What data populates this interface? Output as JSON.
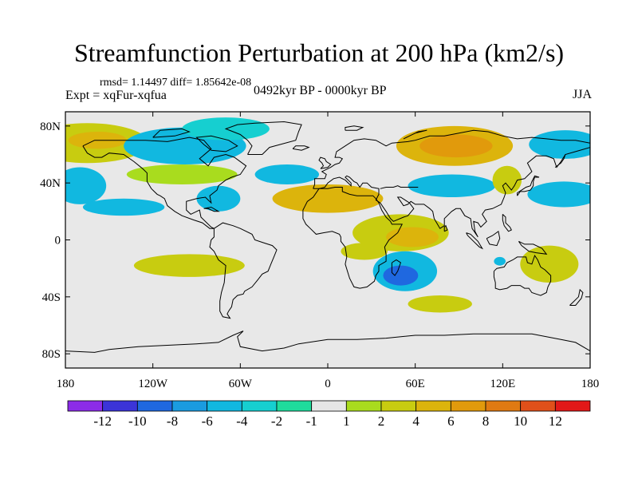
{
  "chart_data": {
    "type": "contour-map",
    "title": "Streamfunction Perturbation at 200 hPa (km2/s)",
    "left_text": {
      "stats": "rmsd= 1.14497  diff= 1.85642e-08",
      "experiment": "Expt = xqFur-xqfua"
    },
    "center_text": "0492kyr BP - 0000kyr BP",
    "right_text": "JJA",
    "lon_range": [
      -180,
      180
    ],
    "lat_range": [
      -90,
      90
    ],
    "x_ticks": [
      {
        "lon": -180,
        "label": "180"
      },
      {
        "lon": -120,
        "label": "120W"
      },
      {
        "lon": -60,
        "label": "60W"
      },
      {
        "lon": 0,
        "label": "0"
      },
      {
        "lon": 60,
        "label": "60E"
      },
      {
        "lon": 120,
        "label": "120E"
      },
      {
        "lon": 180,
        "label": "180"
      }
    ],
    "y_ticks": [
      {
        "lat": 80,
        "label": "80N"
      },
      {
        "lat": 40,
        "label": "40N"
      },
      {
        "lat": 0,
        "label": "0"
      },
      {
        "lat": -40,
        "label": "40S"
      },
      {
        "lat": -80,
        "label": "80S"
      }
    ],
    "colorbar": {
      "colors": [
        "#8c2ce8",
        "#3b34d8",
        "#1f68e0",
        "#1a9be0",
        "#11b8e0",
        "#16cfd0",
        "#1fdc9c",
        "#e6e6e6",
        "#a9dc1e",
        "#c8cc10",
        "#dcb40c",
        "#e19a0c",
        "#e07a12",
        "#e0501a",
        "#e21818"
      ],
      "labels": [
        "-12",
        "-10",
        "-8",
        "-6",
        "-4",
        "-2",
        "-1",
        "1",
        "2",
        "4",
        "6",
        "8",
        "10",
        "12"
      ]
    },
    "features": [
      {
        "name": "north-pacific-high",
        "lon": -165,
        "lat": 68,
        "rx": 42,
        "ry": 14,
        "level": 2
      },
      {
        "name": "north-pacific-high-core",
        "lon": -158,
        "lat": 70,
        "rx": 20,
        "ry": 6,
        "level": 3
      },
      {
        "name": "west-pacific-low",
        "lon": -170,
        "lat": 38,
        "rx": 18,
        "ry": 13,
        "level": -3
      },
      {
        "name": "canada-low",
        "lon": -98,
        "lat": 66,
        "rx": 42,
        "ry": 13,
        "level": -3
      },
      {
        "name": "greenland-arctic-low",
        "lon": -70,
        "lat": 78,
        "rx": 30,
        "ry": 8,
        "level": -2
      },
      {
        "name": "north-atlantic-high",
        "lon": -100,
        "lat": 46,
        "rx": 38,
        "ry": 7,
        "level": 1
      },
      {
        "name": "central-pacific-low",
        "lon": -140,
        "lat": 23,
        "rx": 28,
        "ry": 6,
        "level": -3
      },
      {
        "name": "us-low",
        "lon": -75,
        "lat": 29,
        "rx": 15,
        "ry": 9,
        "level": -3
      },
      {
        "name": "atlantic-low",
        "lon": -28,
        "lat": 46,
        "rx": 22,
        "ry": 7,
        "level": -3
      },
      {
        "name": "eurasia-high",
        "lon": 0,
        "lat": 29,
        "rx": 38,
        "ry": 10,
        "level": 3
      },
      {
        "name": "siberia-high",
        "lon": 87,
        "lat": 66,
        "rx": 40,
        "ry": 14,
        "level": 3
      },
      {
        "name": "siberia-high-core",
        "lon": 88,
        "lat": 66,
        "rx": 25,
        "ry": 8,
        "level": 4
      },
      {
        "name": "asia-low",
        "lon": 85,
        "lat": 38,
        "rx": 30,
        "ry": 8,
        "level": -3
      },
      {
        "name": "east-asia-high",
        "lon": 123,
        "lat": 42,
        "rx": 10,
        "ry": 10,
        "level": 2
      },
      {
        "name": "west-pacific-low-east",
        "lon": 162,
        "lat": 32,
        "rx": 25,
        "ry": 9,
        "level": -3
      },
      {
        "name": "bering-low",
        "lon": 163,
        "lat": 67,
        "rx": 25,
        "ry": 10,
        "level": -3
      },
      {
        "name": "arabian-high",
        "lon": 50,
        "lat": 5,
        "rx": 33,
        "ry": 13,
        "level": 2
      },
      {
        "name": "arabian-high-core",
        "lon": 58,
        "lat": 2,
        "rx": 18,
        "ry": 7,
        "level": 3
      },
      {
        "name": "indian-ocean-low",
        "lon": 53,
        "lat": -22,
        "rx": 22,
        "ry": 14,
        "level": -3
      },
      {
        "name": "indian-ocean-low-core",
        "lon": 50,
        "lat": -25,
        "rx": 12,
        "ry": 7,
        "level": -5
      },
      {
        "name": "south-indian-high",
        "lon": 77,
        "lat": -45,
        "rx": 22,
        "ry": 6,
        "level": 2
      },
      {
        "name": "australia-high",
        "lon": 152,
        "lat": -17,
        "rx": 20,
        "ry": 13,
        "level": 2
      },
      {
        "name": "maritime-low",
        "lon": 118,
        "lat": -15,
        "rx": 4,
        "ry": 3,
        "level": -3
      },
      {
        "name": "south-pacific-high",
        "lon": -95,
        "lat": -18,
        "rx": 38,
        "ry": 8,
        "level": 2
      },
      {
        "name": "west-africa-high",
        "lon": 25,
        "lat": -8,
        "rx": 16,
        "ry": 6,
        "level": 2
      }
    ]
  }
}
